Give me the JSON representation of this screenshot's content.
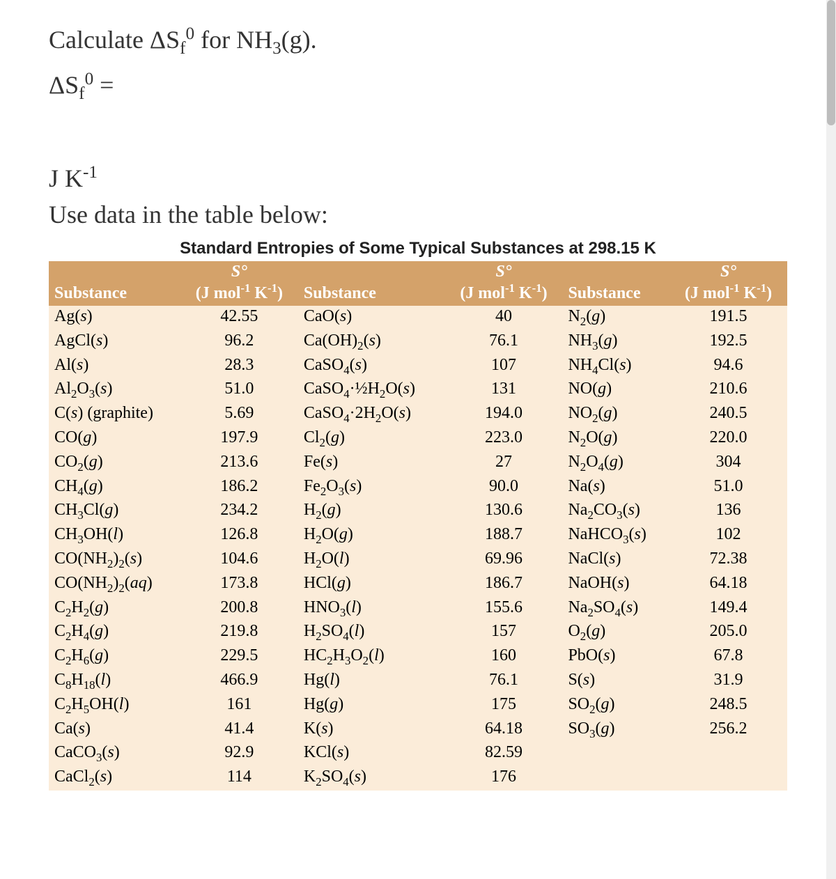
{
  "question": {
    "line1_html": "Calculate ΔS<sub>f</sub><sup>0</sup> for NH<sub>3</sub>(g).",
    "line2_html": "ΔS<sub>f</sub><sup>0</sup> =",
    "units_html": "J K<sup>-1</sup>",
    "instruction": "Use data in the table below:"
  },
  "table": {
    "title": "Standard Entropies of Some Typical Substances at 298.15 K",
    "header_sub": "Substance",
    "header_s_html": "<span class='shead'>S°</span>(J mol<sup>-1</sup> K<sup>-1</sup>)",
    "background_header": "#d4a26a",
    "background_body": "#fbecd9",
    "rows": [
      {
        "a": "Ag(<i>s</i>)",
        "av": "42.55",
        "b": "CaO(<i>s</i>)",
        "bv": "40",
        "c": "N<sub>2</sub>(<i>g</i>)",
        "cv": "191.5"
      },
      {
        "a": "AgCl(<i>s</i>)",
        "av": "96.2",
        "b": "Ca(OH)<sub>2</sub>(<i>s</i>)",
        "bv": "76.1",
        "c": "NH<sub>3</sub>(<i>g</i>)",
        "cv": "192.5"
      },
      {
        "a": "Al(<i>s</i>)",
        "av": "28.3",
        "b": "CaSO<sub>4</sub>(<i>s</i>)",
        "bv": "107",
        "c": "NH<sub>4</sub>Cl(<i>s</i>)",
        "cv": "94.6"
      },
      {
        "a": "Al<sub>2</sub>O<sub>3</sub>(<i>s</i>)",
        "av": "51.0",
        "b": "CaSO<sub>4</sub>·½H<sub>2</sub>O(<i>s</i>)",
        "bv": "131",
        "c": "NO(<i>g</i>)",
        "cv": "210.6"
      },
      {
        "a": "C(<i>s</i>) (graphite)",
        "av": "5.69",
        "b": "CaSO<sub>4</sub>·2H<sub>2</sub>O(<i>s</i>)",
        "bv": "194.0",
        "c": "NO<sub>2</sub>(<i>g</i>)",
        "cv": "240.5"
      },
      {
        "a": "CO(<i>g</i>)",
        "av": "197.9",
        "b": "Cl<sub>2</sub>(<i>g</i>)",
        "bv": "223.0",
        "c": "N<sub>2</sub>O(<i>g</i>)",
        "cv": "220.0"
      },
      {
        "a": "CO<sub>2</sub>(<i>g</i>)",
        "av": "213.6",
        "b": "Fe(<i>s</i>)",
        "bv": "27",
        "c": "N<sub>2</sub>O<sub>4</sub>(<i>g</i>)",
        "cv": "304"
      },
      {
        "a": "CH<sub>4</sub>(<i>g</i>)",
        "av": "186.2",
        "b": "Fe<sub>2</sub>O<sub>3</sub>(<i>s</i>)",
        "bv": "90.0",
        "c": "Na(<i>s</i>)",
        "cv": "51.0"
      },
      {
        "a": "CH<sub>3</sub>Cl(<i>g</i>)",
        "av": "234.2",
        "b": "H<sub>2</sub>(<i>g</i>)",
        "bv": "130.6",
        "c": "Na<sub>2</sub>CO<sub>3</sub>(<i>s</i>)",
        "cv": "136"
      },
      {
        "a": "CH<sub>3</sub>OH(<i>l</i>)",
        "av": "126.8",
        "b": "H<sub>2</sub>O(<i>g</i>)",
        "bv": "188.7",
        "c": "NaHCO<sub>3</sub>(<i>s</i>)",
        "cv": "102"
      },
      {
        "a": "CO(NH<sub>2</sub>)<sub>2</sub>(<i>s</i>)",
        "av": "104.6",
        "b": "H<sub>2</sub>O(<i>l</i>)",
        "bv": "69.96",
        "c": "NaCl(<i>s</i>)",
        "cv": "72.38"
      },
      {
        "a": "CO(NH<sub>2</sub>)<sub>2</sub>(<i>aq</i>)",
        "av": "173.8",
        "b": "HCl(<i>g</i>)",
        "bv": "186.7",
        "c": "NaOH(<i>s</i>)",
        "cv": "64.18"
      },
      {
        "a": "C<sub>2</sub>H<sub>2</sub>(<i>g</i>)",
        "av": "200.8",
        "b": "HNO<sub>3</sub>(<i>l</i>)",
        "bv": "155.6",
        "c": "Na<sub>2</sub>SO<sub>4</sub>(<i>s</i>)",
        "cv": "149.4"
      },
      {
        "a": "C<sub>2</sub>H<sub>4</sub>(<i>g</i>)",
        "av": "219.8",
        "b": "H<sub>2</sub>SO<sub>4</sub>(<i>l</i>)",
        "bv": "157",
        "c": "O<sub>2</sub>(<i>g</i>)",
        "cv": "205.0"
      },
      {
        "a": "C<sub>2</sub>H<sub>6</sub>(<i>g</i>)",
        "av": "229.5",
        "b": "HC<sub>2</sub>H<sub>3</sub>O<sub>2</sub>(<i>l</i>)",
        "bv": "160",
        "c": "PbO(<i>s</i>)",
        "cv": "67.8"
      },
      {
        "a": "C<sub>8</sub>H<sub>18</sub>(<i>l</i>)",
        "av": "466.9",
        "b": "Hg(<i>l</i>)",
        "bv": "76.1",
        "c": "S(<i>s</i>)",
        "cv": "31.9"
      },
      {
        "a": "C<sub>2</sub>H<sub>5</sub>OH(<i>l</i>)",
        "av": "161",
        "b": "Hg(<i>g</i>)",
        "bv": "175",
        "c": "SO<sub>2</sub>(<i>g</i>)",
        "cv": "248.5"
      },
      {
        "a": "Ca(<i>s</i>)",
        "av": "41.4",
        "b": "K(<i>s</i>)",
        "bv": "64.18",
        "c": "SO<sub>3</sub>(<i>g</i>)",
        "cv": "256.2"
      },
      {
        "a": "CaCO<sub>3</sub>(<i>s</i>)",
        "av": "92.9",
        "b": "KCl(<i>s</i>)",
        "bv": "82.59",
        "c": "",
        "cv": ""
      },
      {
        "a": "CaCl<sub>2</sub>(<i>s</i>)",
        "av": "114",
        "b": "K<sub>2</sub>SO<sub>4</sub>(<i>s</i>)",
        "bv": "176",
        "c": "",
        "cv": ""
      }
    ]
  }
}
